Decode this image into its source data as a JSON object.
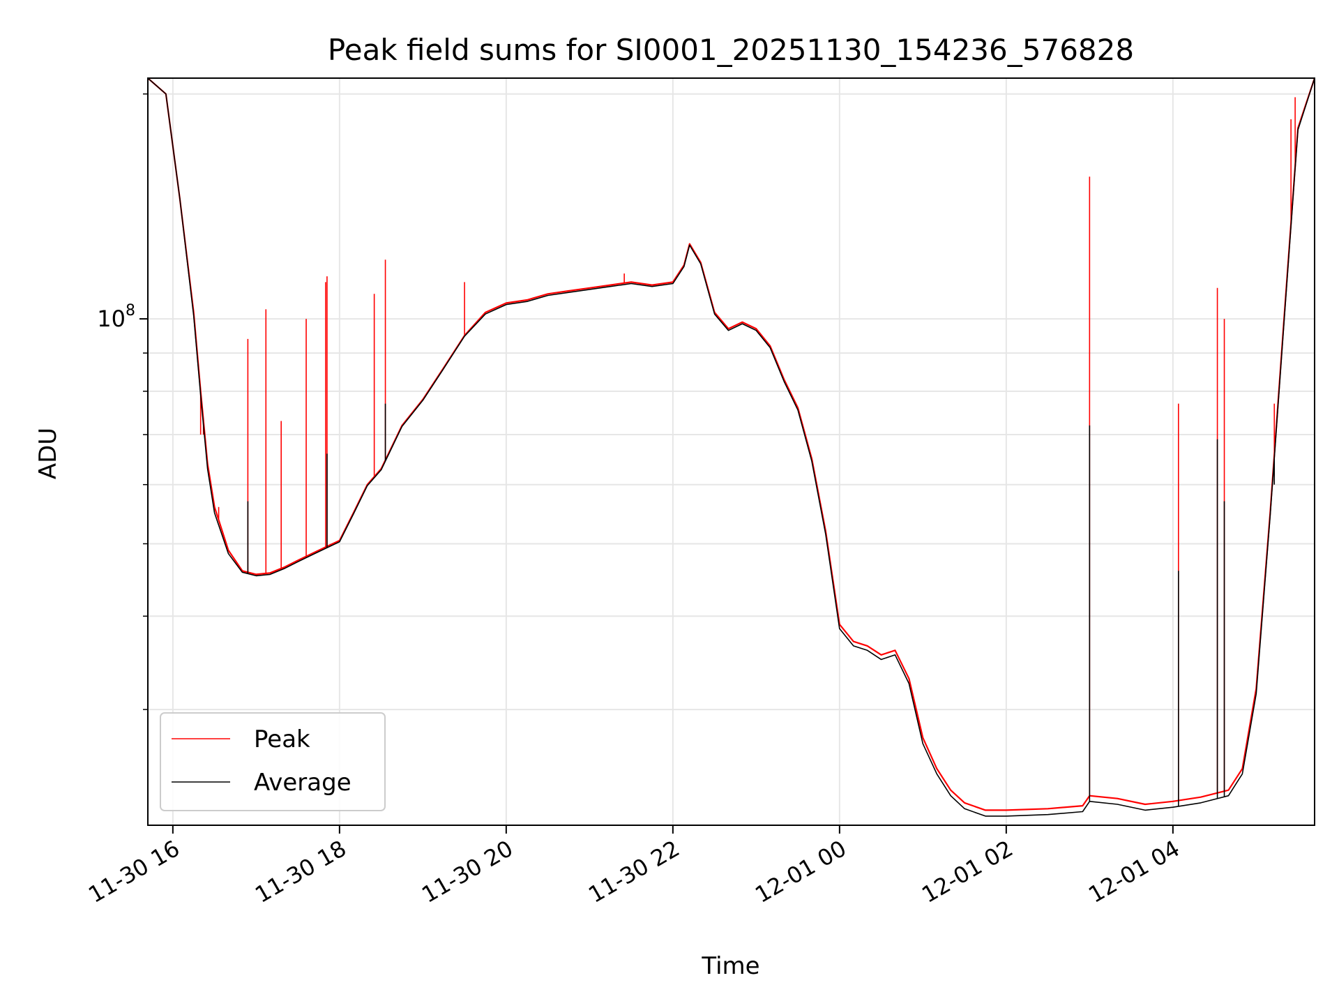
{
  "chart_data": {
    "type": "line",
    "title": "Peak field sums for SI0001_20251130_154236_576828",
    "xlabel": "Time",
    "ylabel": "ADU",
    "yscale": "log",
    "grid": true,
    "legend_position": "lower-left",
    "xlim": [
      "2025-11-30 15:42",
      "2025-12-01 05:42"
    ],
    "ylim": [
      21000000,
      210000000
    ],
    "x_ticks": [
      {
        "label": "11-30 16",
        "value": "2025-11-30 16:00"
      },
      {
        "label": "11-30 18",
        "value": "2025-11-30 18:00"
      },
      {
        "label": "11-30 20",
        "value": "2025-11-30 20:00"
      },
      {
        "label": "11-30 22",
        "value": "2025-11-30 22:00"
      },
      {
        "label": "12-01 00",
        "value": "2025-12-01 00:00"
      },
      {
        "label": "12-01 02",
        "value": "2025-12-01 02:00"
      },
      {
        "label": "12-01 04",
        "value": "2025-12-01 04:00"
      }
    ],
    "y_ticks": [
      {
        "base": "10",
        "exponent": "8",
        "value": 100000000
      }
    ],
    "y_minor_ticks": [
      30000000,
      40000000,
      50000000,
      60000000,
      70000000,
      80000000,
      90000000,
      200000000
    ],
    "series": [
      {
        "name": "Peak",
        "color": "#ff0000",
        "points": [
          [
            "2025-11-30 15:42",
            210000000
          ],
          [
            "2025-11-30 15:55",
            200000000
          ],
          [
            "2025-11-30 16:05",
            145000000
          ],
          [
            "2025-11-30 16:15",
            102000000
          ],
          [
            "2025-11-30 16:20",
            80000000
          ],
          [
            "2025-11-30 16:25",
            64000000
          ],
          [
            "2025-11-30 16:30",
            56000000
          ],
          [
            "2025-11-30 16:40",
            49000000
          ],
          [
            "2025-11-30 16:50",
            46000000
          ],
          [
            "2025-11-30 17:00",
            45500000
          ],
          [
            "2025-11-30 17:10",
            45700000
          ],
          [
            "2025-11-30 17:20",
            46500000
          ],
          [
            "2025-11-30 17:30",
            47500000
          ],
          [
            "2025-11-30 17:40",
            48500000
          ],
          [
            "2025-11-30 17:50",
            49500000
          ],
          [
            "2025-11-30 18:00",
            50500000
          ],
          [
            "2025-11-30 18:10",
            55000000
          ],
          [
            "2025-11-30 18:20",
            60000000
          ],
          [
            "2025-11-30 18:30",
            63000000
          ],
          [
            "2025-11-30 18:45",
            72000000
          ],
          [
            "2025-11-30 19:00",
            78000000
          ],
          [
            "2025-11-30 19:15",
            86000000
          ],
          [
            "2025-11-30 19:30",
            95000000
          ],
          [
            "2025-11-30 19:45",
            102000000
          ],
          [
            "2025-11-30 20:00",
            105000000
          ],
          [
            "2025-11-30 20:15",
            106000000
          ],
          [
            "2025-11-30 20:30",
            108000000
          ],
          [
            "2025-11-30 20:45",
            109000000
          ],
          [
            "2025-11-30 21:00",
            110000000
          ],
          [
            "2025-11-30 21:15",
            111000000
          ],
          [
            "2025-11-30 21:30",
            112000000
          ],
          [
            "2025-11-30 21:45",
            111000000
          ],
          [
            "2025-11-30 22:00",
            112000000
          ],
          [
            "2025-11-30 22:08",
            118000000
          ],
          [
            "2025-11-30 22:12",
            126000000
          ],
          [
            "2025-11-30 22:20",
            119000000
          ],
          [
            "2025-11-30 22:30",
            102000000
          ],
          [
            "2025-11-30 22:40",
            97000000
          ],
          [
            "2025-11-30 22:50",
            99000000
          ],
          [
            "2025-11-30 23:00",
            97000000
          ],
          [
            "2025-11-30 23:10",
            92000000
          ],
          [
            "2025-11-30 23:20",
            83000000
          ],
          [
            "2025-11-30 23:30",
            76000000
          ],
          [
            "2025-11-30 23:40",
            65000000
          ],
          [
            "2025-11-30 23:50",
            52000000
          ],
          [
            "2025-12-01 00:00",
            39000000
          ],
          [
            "2025-12-01 00:10",
            37000000
          ],
          [
            "2025-12-01 00:20",
            36500000
          ],
          [
            "2025-12-01 00:30",
            35500000
          ],
          [
            "2025-12-01 00:40",
            36000000
          ],
          [
            "2025-12-01 00:50",
            33000000
          ],
          [
            "2025-12-01 01:00",
            27500000
          ],
          [
            "2025-12-01 01:10",
            25000000
          ],
          [
            "2025-12-01 01:20",
            23400000
          ],
          [
            "2025-12-01 01:30",
            22500000
          ],
          [
            "2025-12-01 01:45",
            22000000
          ],
          [
            "2025-12-01 02:00",
            22000000
          ],
          [
            "2025-12-01 02:30",
            22100000
          ],
          [
            "2025-12-01 02:55",
            22300000
          ],
          [
            "2025-12-01 03:00",
            23000000
          ],
          [
            "2025-12-01 03:20",
            22800000
          ],
          [
            "2025-12-01 03:40",
            22400000
          ],
          [
            "2025-12-01 04:00",
            22600000
          ],
          [
            "2025-12-01 04:20",
            22900000
          ],
          [
            "2025-12-01 04:40",
            23400000
          ],
          [
            "2025-12-01 04:50",
            25000000
          ],
          [
            "2025-12-01 05:00",
            32000000
          ],
          [
            "2025-12-01 05:10",
            55000000
          ],
          [
            "2025-12-01 05:20",
            100000000
          ],
          [
            "2025-12-01 05:30",
            180000000
          ],
          [
            "2025-12-01 05:42",
            210000000
          ]
        ],
        "spikes": [
          [
            "2025-11-30 16:20",
            70000000
          ],
          [
            "2025-11-30 16:22",
            70000000
          ],
          [
            "2025-11-30 16:33",
            56000000
          ],
          [
            "2025-11-30 16:54",
            94000000
          ],
          [
            "2025-11-30 17:07",
            103000000
          ],
          [
            "2025-11-30 17:18",
            73000000
          ],
          [
            "2025-11-30 17:36",
            100000000
          ],
          [
            "2025-11-30 17:50",
            112000000
          ],
          [
            "2025-11-30 17:51",
            114000000
          ],
          [
            "2025-11-30 18:25",
            108000000
          ],
          [
            "2025-11-30 18:33",
            120000000
          ],
          [
            "2025-11-30 19:30",
            112000000
          ],
          [
            "2025-11-30 21:25",
            115000000
          ],
          [
            "2025-12-01 03:00",
            155000000
          ],
          [
            "2025-12-01 04:04",
            77000000
          ],
          [
            "2025-12-01 04:32",
            110000000
          ],
          [
            "2025-12-01 04:37",
            100000000
          ],
          [
            "2025-12-01 05:13",
            77000000
          ],
          [
            "2025-12-01 05:25",
            185000000
          ],
          [
            "2025-12-01 05:28",
            198000000
          ]
        ]
      },
      {
        "name": "Average",
        "color": "#000000",
        "points": [
          [
            "2025-11-30 15:42",
            210000000
          ],
          [
            "2025-11-30 15:55",
            200000000
          ],
          [
            "2025-11-30 16:05",
            145000000
          ],
          [
            "2025-11-30 16:15",
            101000000
          ],
          [
            "2025-11-30 16:20",
            79000000
          ],
          [
            "2025-11-30 16:25",
            63000000
          ],
          [
            "2025-11-30 16:30",
            55000000
          ],
          [
            "2025-11-30 16:40",
            48500000
          ],
          [
            "2025-11-30 16:50",
            45800000
          ],
          [
            "2025-11-30 17:00",
            45300000
          ],
          [
            "2025-11-30 17:10",
            45500000
          ],
          [
            "2025-11-30 17:20",
            46300000
          ],
          [
            "2025-11-30 17:30",
            47300000
          ],
          [
            "2025-11-30 17:40",
            48300000
          ],
          [
            "2025-11-30 17:50",
            49300000
          ],
          [
            "2025-11-30 18:00",
            50300000
          ],
          [
            "2025-11-30 18:10",
            54800000
          ],
          [
            "2025-11-30 18:20",
            59800000
          ],
          [
            "2025-11-30 18:30",
            62800000
          ],
          [
            "2025-11-30 18:45",
            71800000
          ],
          [
            "2025-11-30 19:00",
            77800000
          ],
          [
            "2025-11-30 19:15",
            85800000
          ],
          [
            "2025-11-30 19:30",
            94800000
          ],
          [
            "2025-11-30 19:45",
            101500000
          ],
          [
            "2025-11-30 20:00",
            104500000
          ],
          [
            "2025-11-30 20:15",
            105500000
          ],
          [
            "2025-11-30 20:30",
            107500000
          ],
          [
            "2025-11-30 20:45",
            108500000
          ],
          [
            "2025-11-30 21:00",
            109500000
          ],
          [
            "2025-11-30 21:15",
            110500000
          ],
          [
            "2025-11-30 21:30",
            111500000
          ],
          [
            "2025-11-30 21:45",
            110500000
          ],
          [
            "2025-11-30 22:00",
            111500000
          ],
          [
            "2025-11-30 22:08",
            117500000
          ],
          [
            "2025-11-30 22:12",
            125500000
          ],
          [
            "2025-11-30 22:20",
            118500000
          ],
          [
            "2025-11-30 22:30",
            101500000
          ],
          [
            "2025-11-30 22:40",
            96500000
          ],
          [
            "2025-11-30 22:50",
            98500000
          ],
          [
            "2025-11-30 23:00",
            96500000
          ],
          [
            "2025-11-30 23:10",
            91500000
          ],
          [
            "2025-11-30 23:20",
            82500000
          ],
          [
            "2025-11-30 23:30",
            75500000
          ],
          [
            "2025-11-30 23:40",
            64500000
          ],
          [
            "2025-11-30 23:50",
            51500000
          ],
          [
            "2025-12-01 00:00",
            38500000
          ],
          [
            "2025-12-01 00:10",
            36500000
          ],
          [
            "2025-12-01 00:20",
            36000000
          ],
          [
            "2025-12-01 00:30",
            35000000
          ],
          [
            "2025-12-01 00:40",
            35500000
          ],
          [
            "2025-12-01 00:50",
            32500000
          ],
          [
            "2025-12-01 01:00",
            27000000
          ],
          [
            "2025-12-01 01:10",
            24600000
          ],
          [
            "2025-12-01 01:20",
            23000000
          ],
          [
            "2025-12-01 01:30",
            22100000
          ],
          [
            "2025-12-01 01:45",
            21600000
          ],
          [
            "2025-12-01 02:00",
            21600000
          ],
          [
            "2025-12-01 02:30",
            21700000
          ],
          [
            "2025-12-01 02:55",
            21900000
          ],
          [
            "2025-12-01 03:00",
            22600000
          ],
          [
            "2025-12-01 03:20",
            22400000
          ],
          [
            "2025-12-01 03:40",
            22000000
          ],
          [
            "2025-12-01 04:00",
            22200000
          ],
          [
            "2025-12-01 04:20",
            22500000
          ],
          [
            "2025-12-01 04:40",
            23000000
          ],
          [
            "2025-12-01 04:50",
            24600000
          ],
          [
            "2025-12-01 05:00",
            31500000
          ],
          [
            "2025-12-01 05:10",
            54500000
          ],
          [
            "2025-12-01 05:20",
            99000000
          ],
          [
            "2025-12-01 05:30",
            179000000
          ],
          [
            "2025-12-01 05:42",
            210000000
          ]
        ],
        "spikes": [
          [
            "2025-11-30 16:54",
            57000000
          ],
          [
            "2025-11-30 17:51",
            66000000
          ],
          [
            "2025-11-30 18:33",
            77000000
          ],
          [
            "2025-12-01 03:00",
            72000000
          ],
          [
            "2025-12-01 04:04",
            46000000
          ],
          [
            "2025-12-01 04:32",
            69000000
          ],
          [
            "2025-12-01 04:37",
            57000000
          ],
          [
            "2025-12-01 05:13",
            60000000
          ]
        ]
      }
    ]
  }
}
